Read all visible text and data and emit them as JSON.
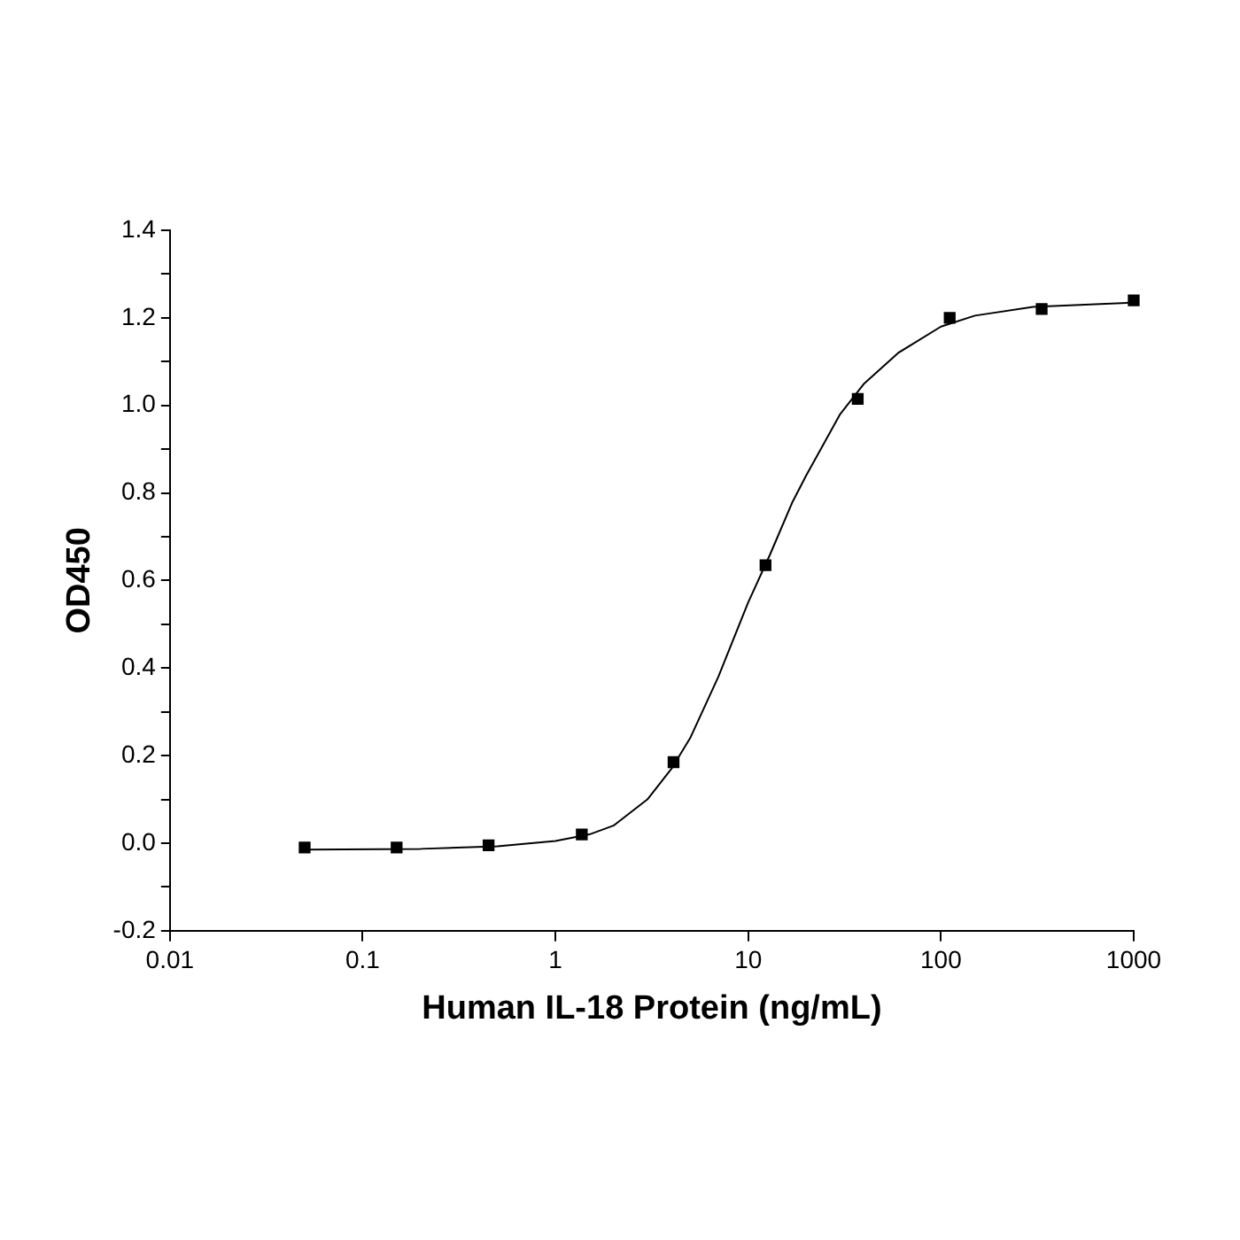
{
  "chart_data": {
    "type": "scatter",
    "xlabel": "Human IL-18 Protein (ng/mL)",
    "ylabel": "OD450",
    "log": "x",
    "grid": false,
    "legend": false,
    "marker": "square",
    "xlim": [
      0.01,
      1000
    ],
    "xticks": [
      0.01,
      0.1,
      1,
      10,
      100,
      1000
    ],
    "ylim": [
      -0.2,
      1.4
    ],
    "yticks": [
      {
        "value": -0.2,
        "label": "-0.2"
      },
      {
        "value": -0.1,
        "label": null
      },
      {
        "value": 0,
        "label": "0.0"
      },
      {
        "value": 0.1,
        "label": null
      },
      {
        "value": 0.2,
        "label": "0.2"
      },
      {
        "value": 0.3,
        "label": null
      },
      {
        "value": 0.4,
        "label": "0.4"
      },
      {
        "value": 0.5,
        "label": null
      },
      {
        "value": 0.6,
        "label": "0.6"
      },
      {
        "value": 0.7,
        "label": null
      },
      {
        "value": 0.8,
        "label": "0.8"
      },
      {
        "value": 0.9,
        "label": null
      },
      {
        "value": 1,
        "label": "1.0"
      },
      {
        "value": 1.1,
        "label": null
      },
      {
        "value": 1.2,
        "label": "1.2"
      },
      {
        "value": 1.3,
        "label": null
      },
      {
        "value": 1.4,
        "label": "1.4"
      }
    ],
    "series": [
      {
        "type": "scatter",
        "color": "#000000",
        "x": [
          0.05,
          0.15,
          0.45,
          1.37,
          4.1,
          12.3,
          37,
          111,
          333,
          1000
        ],
        "values": [
          -0.01,
          -0.01,
          -0.005,
          0.02,
          0.185,
          0.635,
          1.015,
          1.2,
          1.22,
          1.24
        ]
      },
      {
        "type": "line",
        "color": "#000000",
        "marker": "none",
        "x": [
          0.05,
          0.2,
          0.5,
          1,
          1.5,
          2,
          3,
          4,
          5,
          7,
          10,
          13,
          17,
          20,
          30,
          40,
          60,
          100,
          150,
          300,
          1000
        ],
        "values": [
          -0.015,
          -0.013,
          -0.007,
          0.005,
          0.02,
          0.04,
          0.1,
          0.17,
          0.24,
          0.38,
          0.55,
          0.66,
          0.78,
          0.84,
          0.98,
          1.05,
          1.12,
          1.18,
          1.205,
          1.225,
          1.235
        ]
      }
    ]
  }
}
